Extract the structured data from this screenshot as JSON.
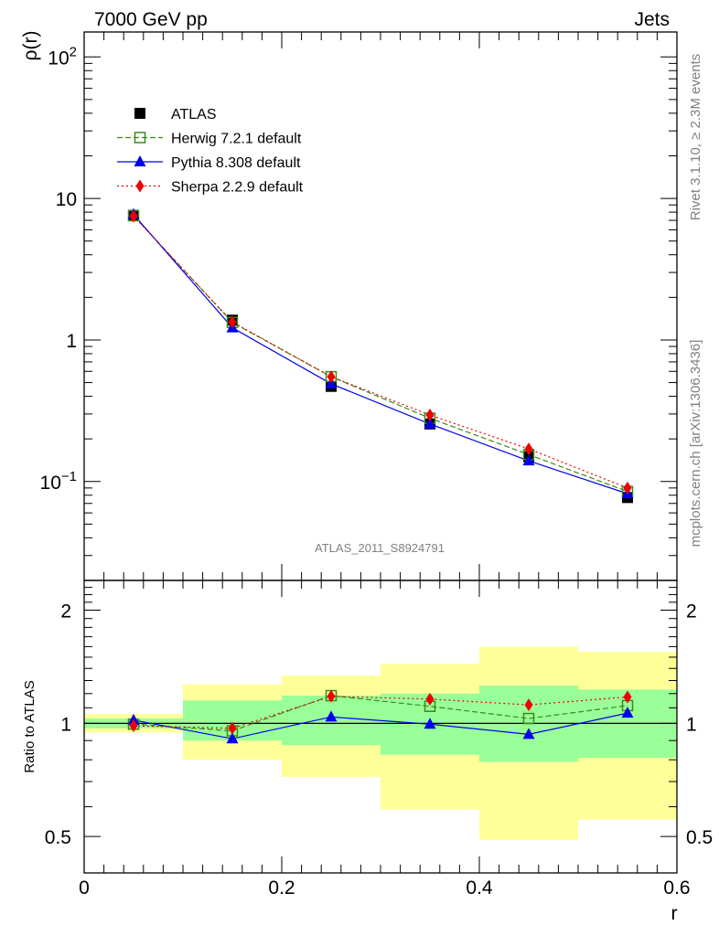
{
  "header": {
    "left": "7000 GeV pp",
    "right": "Jets"
  },
  "side_text": {
    "top": "Rivet 3.1.10, ≥ 2.3M events",
    "bottom": "mcplots.cern.ch [arXiv:1306.3436]"
  },
  "watermark": "ATLAS_2011_S8924791",
  "colors": {
    "atlas": "#000000",
    "herwig": "#3a8a1a",
    "pythia": "#0000ee",
    "sherpa": "#ee0000",
    "band_inner": "#99ff99",
    "band_outer": "#ffff99"
  },
  "chart_data": [
    {
      "type": "line",
      "ylabel_base": "ρ",
      "ylabel_arg": "(r)",
      "yscale": "log",
      "xlim": [
        0,
        0.6
      ],
      "ylim": [
        0.02,
        150
      ],
      "yticks": [
        {
          "value": 100,
          "base": "10",
          "exp": "2"
        },
        {
          "value": 10,
          "base": "10",
          "exp": ""
        },
        {
          "value": 1,
          "base": "1",
          "exp": ""
        },
        {
          "value": 0.1,
          "base": "10",
          "exp": "−1"
        }
      ],
      "x": [
        0.05,
        0.15,
        0.25,
        0.35,
        0.45,
        0.55
      ],
      "series": [
        {
          "name": "ATLAS",
          "key": "atlas",
          "values": [
            7.6,
            1.38,
            0.47,
            0.255,
            0.15,
            0.077
          ]
        },
        {
          "name": "Herwig 7.2.1 default",
          "key": "herwig",
          "values": [
            7.55,
            1.33,
            0.55,
            0.28,
            0.155,
            0.085
          ]
        },
        {
          "name": "Pythia 8.308 default",
          "key": "pythia",
          "values": [
            7.7,
            1.22,
            0.49,
            0.255,
            0.14,
            0.082
          ]
        },
        {
          "name": "Sherpa 2.2.9 default",
          "key": "sherpa",
          "values": [
            7.5,
            1.34,
            0.55,
            0.295,
            0.17,
            0.09
          ]
        }
      ]
    },
    {
      "type": "line",
      "xlabel": "r",
      "ylabel": "Ratio to ATLAS",
      "yscale": "log",
      "xlim": [
        0,
        0.6
      ],
      "ylim": [
        0.4,
        2.4
      ],
      "yticks": [
        0.5,
        1,
        2
      ],
      "ytick_labels": [
        "0.5",
        "1",
        "2"
      ],
      "xticks": [
        0,
        0.2,
        0.4,
        0.6
      ],
      "xtick_labels": [
        "0",
        "0.2",
        "0.4",
        "0.6"
      ],
      "bands": [
        {
          "x0": 0.0,
          "x1": 0.1,
          "inner": [
            0.97,
            1.03
          ],
          "outer": [
            0.945,
            1.06
          ]
        },
        {
          "x0": 0.1,
          "x1": 0.2,
          "inner": [
            0.9,
            1.15
          ],
          "outer": [
            0.8,
            1.27
          ]
        },
        {
          "x0": 0.2,
          "x1": 0.3,
          "inner": [
            0.875,
            1.185
          ],
          "outer": [
            0.72,
            1.34
          ]
        },
        {
          "x0": 0.3,
          "x1": 0.4,
          "inner": [
            0.825,
            1.2
          ],
          "outer": [
            0.59,
            1.44
          ]
        },
        {
          "x0": 0.4,
          "x1": 0.5,
          "inner": [
            0.79,
            1.26
          ],
          "outer": [
            0.49,
            1.6
          ]
        },
        {
          "x0": 0.5,
          "x1": 0.6,
          "inner": [
            0.81,
            1.23
          ],
          "outer": [
            0.555,
            1.55
          ]
        }
      ],
      "x": [
        0.05,
        0.15,
        0.25,
        0.35,
        0.45,
        0.55
      ],
      "series": [
        {
          "name": "Herwig 7.2.1 default",
          "key": "herwig",
          "values": [
            0.995,
            0.955,
            1.185,
            1.11,
            1.03,
            1.115
          ]
        },
        {
          "name": "Pythia 8.308 default",
          "key": "pythia",
          "values": [
            1.02,
            0.91,
            1.04,
            0.995,
            0.935,
            1.065
          ]
        },
        {
          "name": "Sherpa 2.2.9 default",
          "key": "sherpa",
          "values": [
            0.985,
            0.97,
            1.18,
            1.16,
            1.12,
            1.175
          ]
        }
      ]
    }
  ]
}
